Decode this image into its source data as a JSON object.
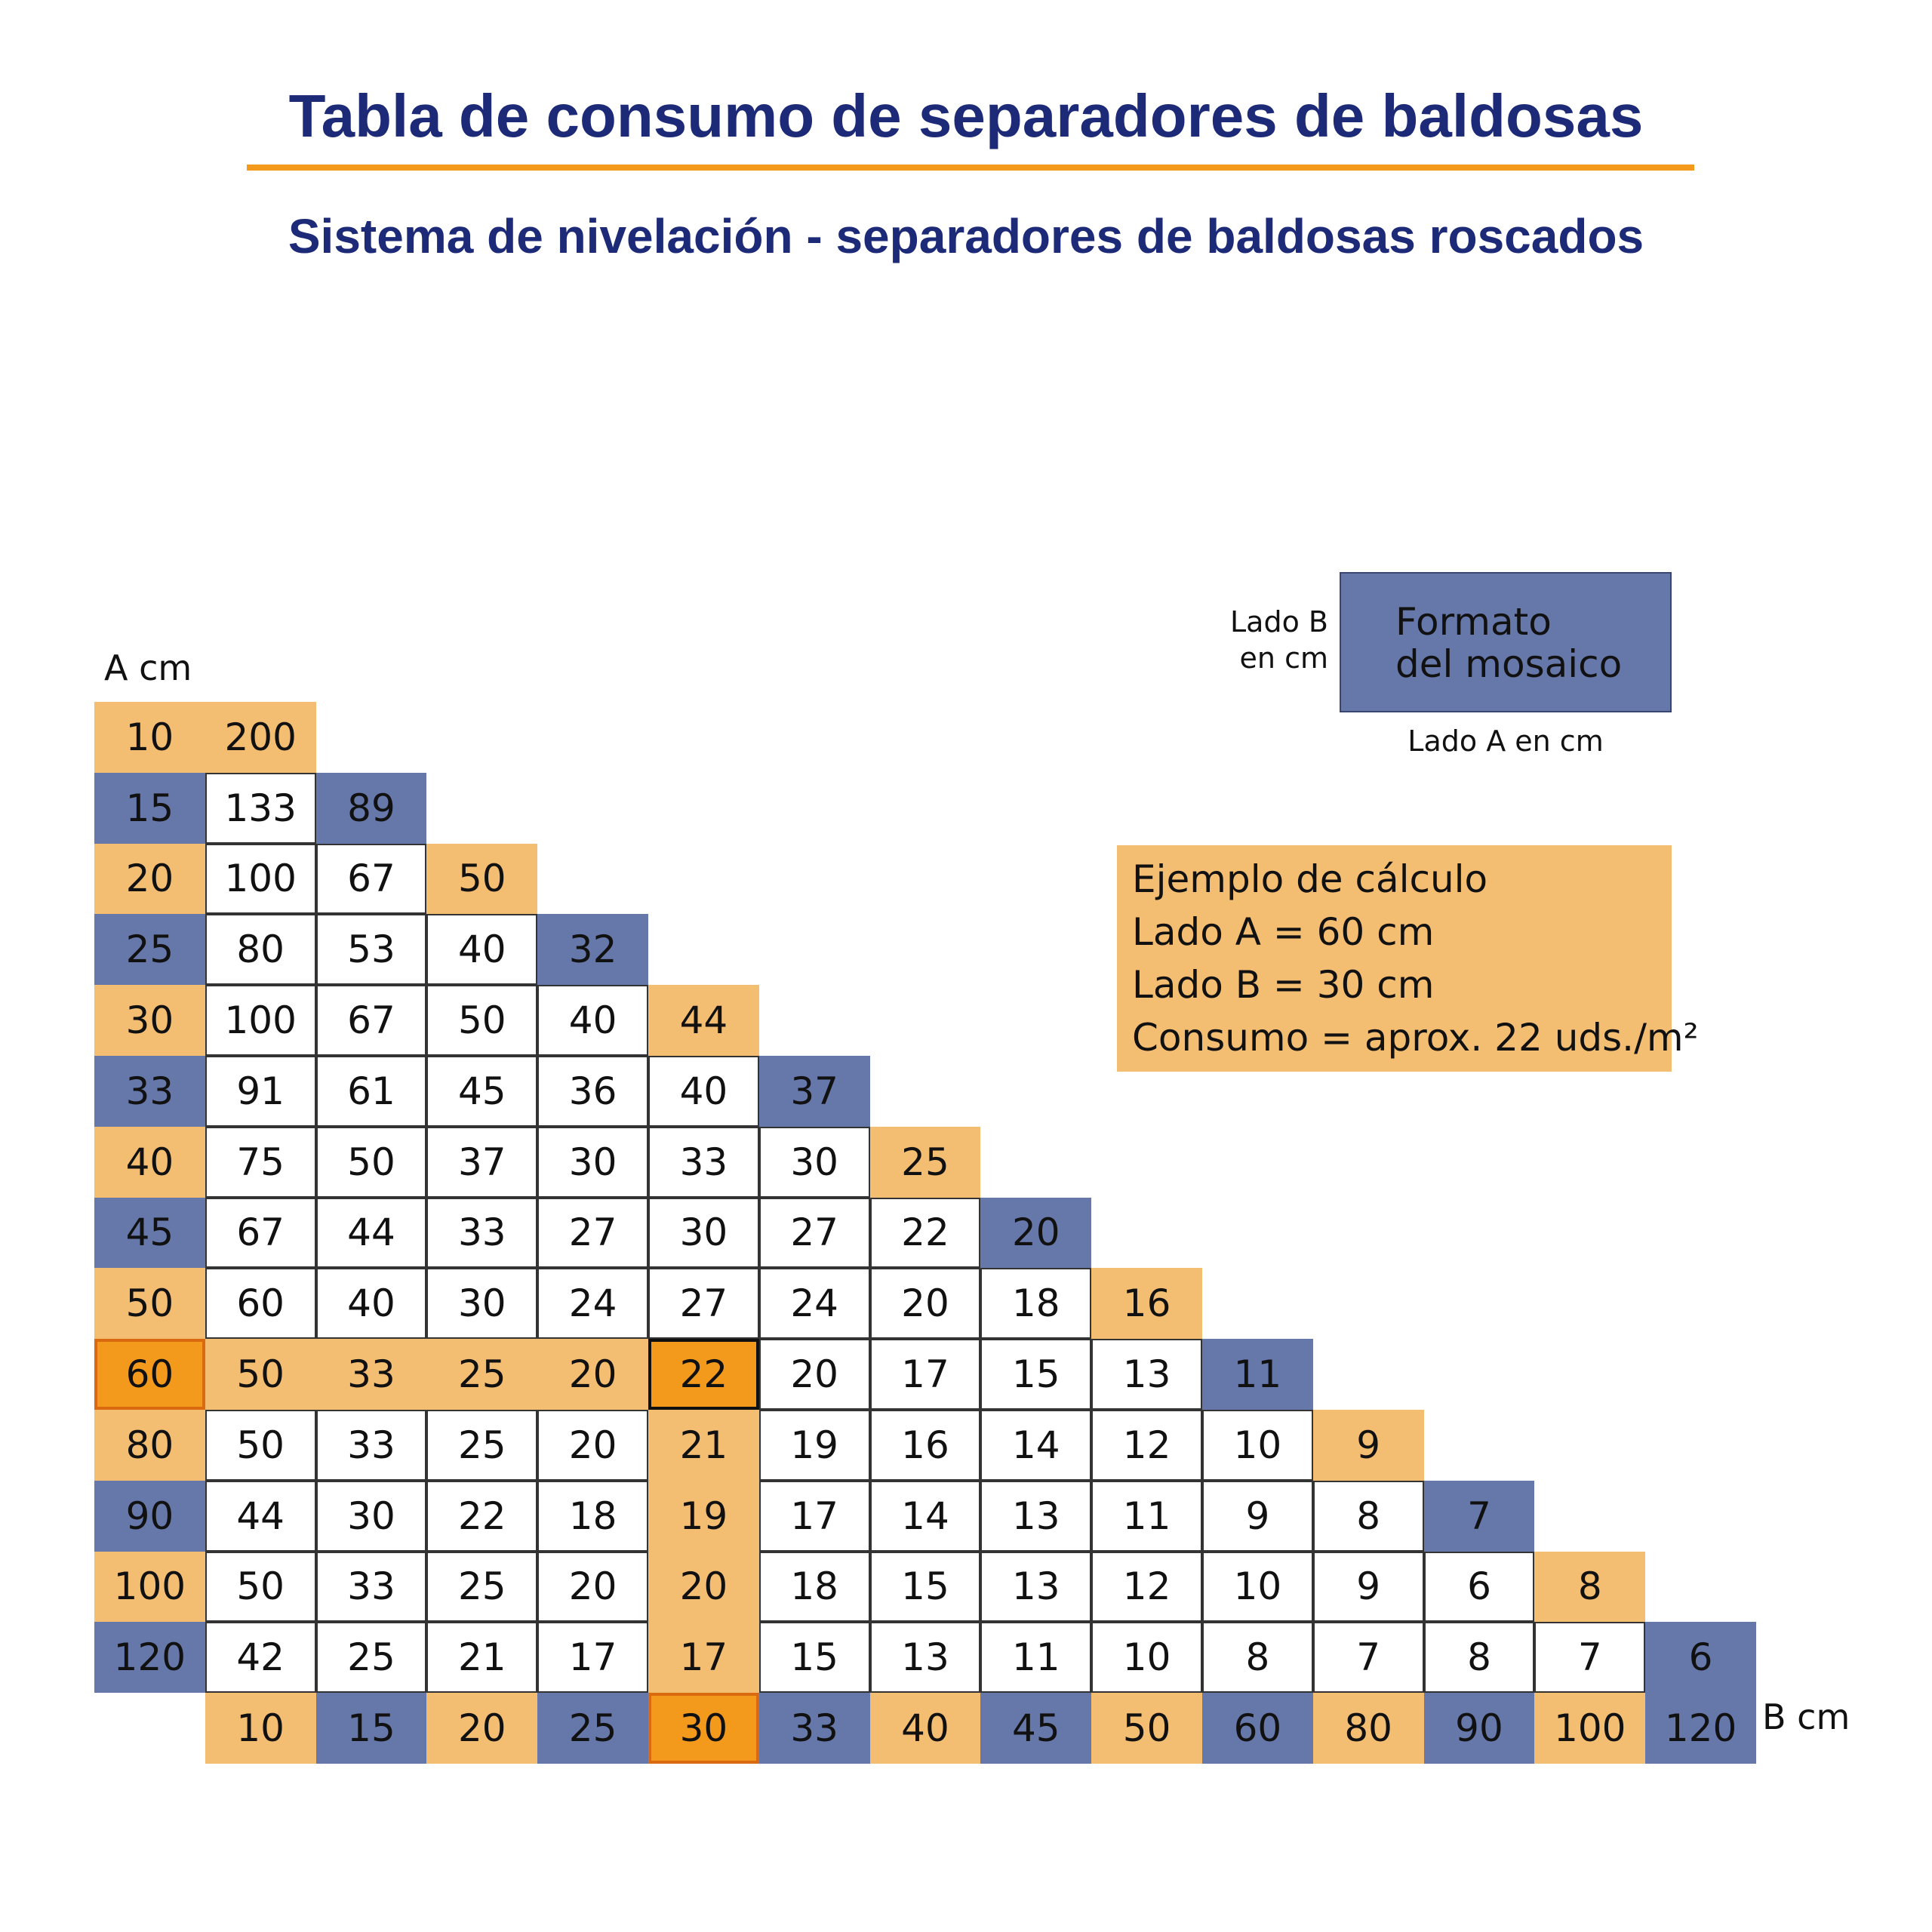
{
  "title": "Tabla de consumo de separadores de baldosas",
  "subtitle": "Sistema de nivelación - separadores de baldosas roscados",
  "legend": {
    "box_text_1": "Formato",
    "box_text_2": "del mosaico",
    "side_1": "Lado B",
    "side_2": "en cm",
    "bottom": "Lado A en cm"
  },
  "example": {
    "line1": "Ejemplo de cálculo",
    "line2": "Lado A = 60 cm",
    "line3": "Lado B = 30 cm",
    "line4": "Consumo = aprox. 22 uds./m²"
  },
  "colors": {
    "orange_light": "#f3bd72",
    "orange_strong": "#f39a1d",
    "blue": "#6677aa",
    "highlight_border": "#d96a10",
    "grid_line": "#333333"
  },
  "chart_data": {
    "type": "table",
    "xlabel": "B cm",
    "ylabel": "A cm",
    "a_values": [
      "10",
      "15",
      "20",
      "25",
      "30",
      "33",
      "40",
      "45",
      "50",
      "60",
      "80",
      "90",
      "100",
      "120"
    ],
    "b_values": [
      "10",
      "15",
      "20",
      "25",
      "30",
      "33",
      "40",
      "45",
      "50",
      "60",
      "80",
      "90",
      "100",
      "120"
    ],
    "rows": [
      [
        "200"
      ],
      [
        "133",
        "89"
      ],
      [
        "100",
        "67",
        "50"
      ],
      [
        "80",
        "53",
        "40",
        "32"
      ],
      [
        "100",
        "67",
        "50",
        "40",
        "44"
      ],
      [
        "91",
        "61",
        "45",
        "36",
        "40",
        "37"
      ],
      [
        "75",
        "50",
        "37",
        "30",
        "33",
        "30",
        "25"
      ],
      [
        "67",
        "44",
        "33",
        "27",
        "30",
        "27",
        "22",
        "20"
      ],
      [
        "60",
        "40",
        "30",
        "24",
        "27",
        "24",
        "20",
        "18",
        "16"
      ],
      [
        "50",
        "33",
        "25",
        "20",
        "22",
        "20",
        "17",
        "15",
        "13",
        "11"
      ],
      [
        "50",
        "33",
        "25",
        "20",
        "21",
        "19",
        "16",
        "14",
        "12",
        "10",
        "9"
      ],
      [
        "44",
        "30",
        "22",
        "18",
        "19",
        "17",
        "14",
        "13",
        "11",
        "9",
        "8",
        "7"
      ],
      [
        "50",
        "33",
        "25",
        "20",
        "20",
        "18",
        "15",
        "13",
        "12",
        "10",
        "9",
        "6",
        "8"
      ],
      [
        "42",
        "25",
        "21",
        "17",
        "17",
        "15",
        "13",
        "11",
        "10",
        "8",
        "7",
        "8",
        "7",
        "6"
      ]
    ],
    "highlight": {
      "a": "60",
      "b": "30",
      "value": "22"
    }
  }
}
